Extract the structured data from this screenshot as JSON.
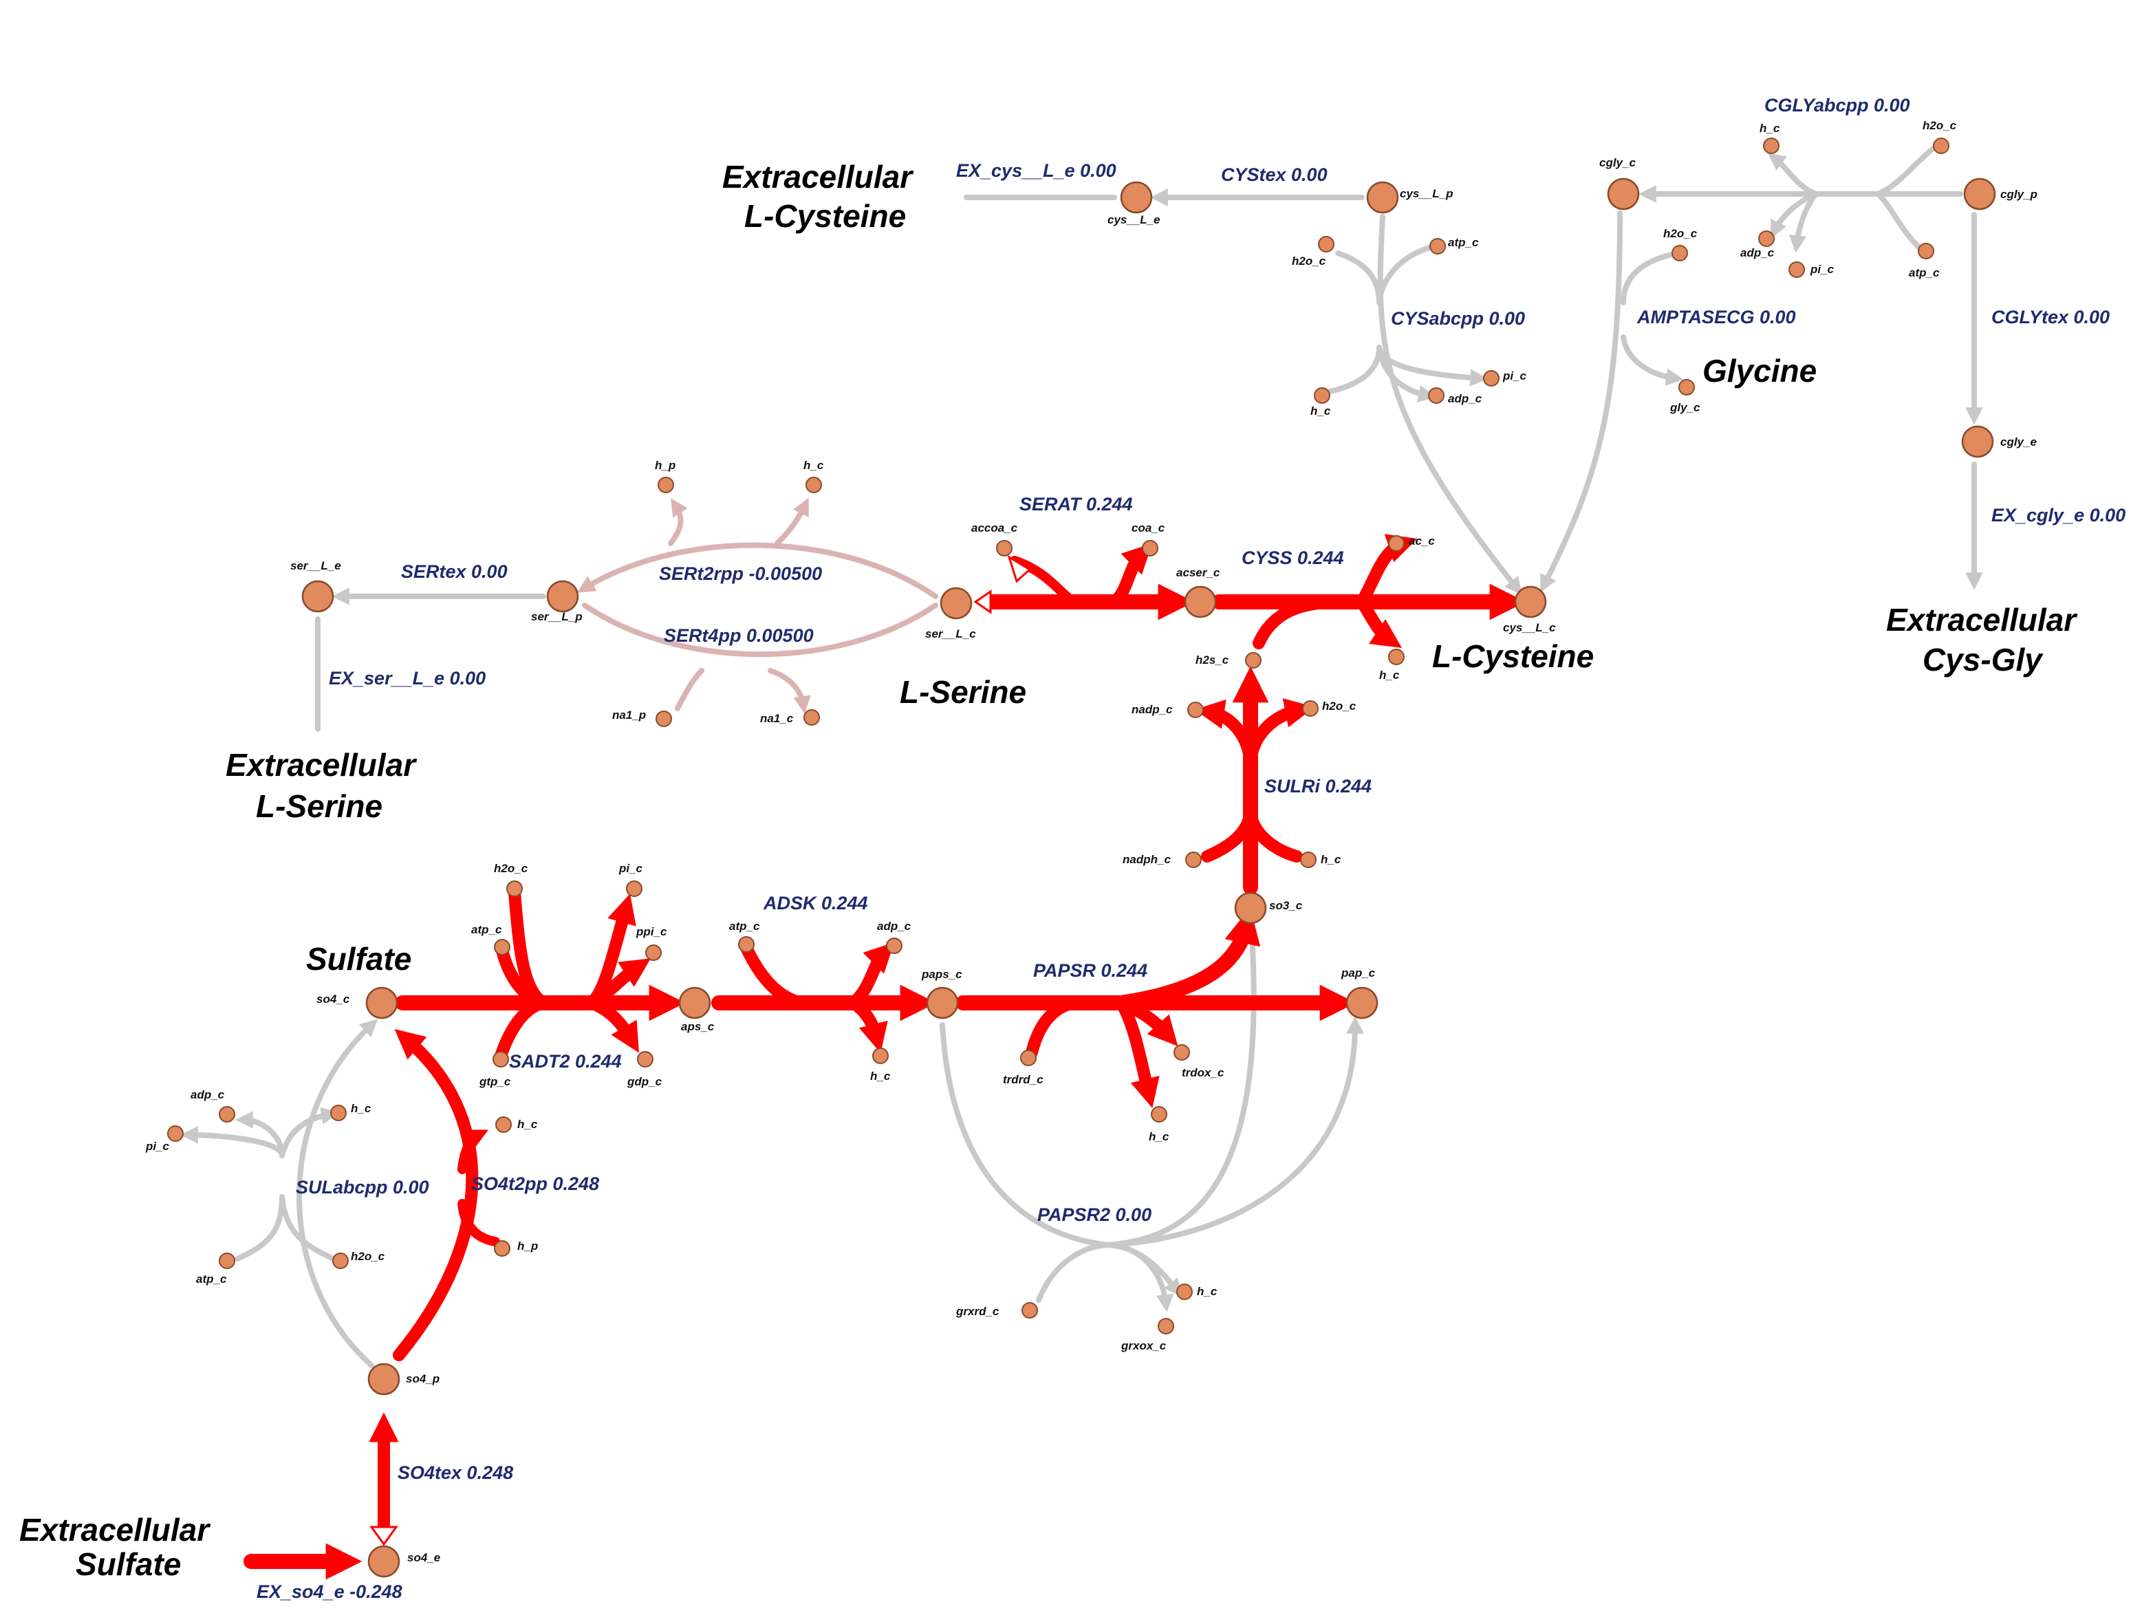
{
  "colors": {
    "active": "#ff0000",
    "inactive": "#c8c8c8",
    "faded": "#dbb3b3",
    "node_fill": "#e08a5e",
    "node_stroke": "#8a4a2a",
    "reaction_label": "#1f2a6e"
  },
  "reactions": {
    "ex_so4_e": "EX_so4_e -0.248",
    "so4tex": "SO4tex 0.248",
    "so4t2pp": "SO4t2pp 0.248",
    "sulabcpp": "SULabcpp 0.00",
    "sadt2": "SADT2 0.244",
    "adsk": "ADSK 0.244",
    "papsr": "PAPSR 0.244",
    "papsr2": "PAPSR2 0.00",
    "sulri": "SULRi 0.244",
    "cyss": "CYSS 0.244",
    "serat": "SERAT 0.244",
    "sertex": "SERtex 0.00",
    "ex_ser_l_e": "EX_ser__L_e 0.00",
    "sert2rpp": "SERt2rpp -0.00500",
    "sert4pp": "SERt4pp 0.00500",
    "ex_cys_l_e": "EX_cys__L_e 0.00",
    "cystex": "CYStex 0.00",
    "cysabcpp": "CYSabcpp 0.00",
    "amptasecg": "AMPTASECG 0.00",
    "cglyabcpp": "CGLYabcpp 0.00",
    "cglytex": "CGLYtex 0.00",
    "ex_cgly_e": "EX_cgly_e 0.00"
  },
  "metabolites": {
    "so4_e": "so4_e",
    "so4_p": "so4_p",
    "so4_c": "so4_c",
    "h_p": "h_p",
    "h_c_so4t2pp": "h_c",
    "adp_c_sul": "adp_c",
    "pi_c_sul": "pi_c",
    "h_c_sul": "h_c",
    "atp_c_sul": "atp_c",
    "h2o_c_sul": "h2o_c",
    "h2o_c_sadt2": "h2o_c",
    "pi_c_sadt2": "pi_c",
    "atp_c_sadt2": "atp_c",
    "ppi_c": "ppi_c",
    "gtp_c": "gtp_c",
    "gdp_c": "gdp_c",
    "aps_c": "aps_c",
    "atp_c_adsk": "atp_c",
    "adp_c_adsk": "adp_c",
    "h_c_adsk": "h_c",
    "paps_c": "paps_c",
    "trdrd_c": "trdrd_c",
    "trdox_c": "trdox_c",
    "h_c_papsr": "h_c",
    "pap_c": "pap_c",
    "grxrd_c": "grxrd_c",
    "grxox_c": "grxox_c",
    "h_c_papsr2": "h_c",
    "so3_c": "so3_c",
    "nadph_c": "nadph_c",
    "h_c_sulri": "h_c",
    "nadp_c": "nadp_c",
    "h2o_c_sulri": "h2o_c",
    "h2s_c": "h2s_c",
    "acser_c": "acser_c",
    "ac_c": "ac_c",
    "h_c_cyss": "h_c",
    "cys_l_c": "cys__L_c",
    "ser_l_c": "ser__L_c",
    "accoa_c": "accoa_c",
    "coa_c": "coa_c",
    "ser_l_p": "ser__L_p",
    "ser_l_e": "ser__L_e",
    "h_p_ser": "h_p",
    "h_c_ser": "h_c",
    "na1_p": "na1_p",
    "na1_c": "na1_c",
    "cys_l_e": "cys__L_e",
    "cys_l_p": "cys__L_p",
    "h2o_c_cys": "h2o_c",
    "atp_c_cys": "atp_c",
    "h_c_cys": "h_c",
    "adp_c_cys": "adp_c",
    "pi_c_cys": "pi_c",
    "cgly_c": "cgly_c",
    "h2o_c_amp": "h2o_c",
    "gly_c": "gly_c",
    "cgly_p": "cgly_p",
    "h_c_cgly": "h_c",
    "h2o_c_cgly": "h2o_c",
    "adp_c_cgly": "adp_c",
    "pi_c_cgly": "pi_c",
    "atp_c_cgly": "atp_c",
    "cgly_e": "cgly_e"
  },
  "titles": {
    "extracellular_sulfate_1": "Extracellular",
    "extracellular_sulfate_2": "Sulfate",
    "sulfate": "Sulfate",
    "extracellular_lserine_1": "Extracellular",
    "extracellular_lserine_2": "L-Serine",
    "lserine": "L-Serine",
    "extracellular_lcysteine_1": "Extracellular",
    "extracellular_lcysteine_2": "L-Cysteine",
    "lcysteine": "L-Cysteine",
    "glycine": "Glycine",
    "extracellular_cysgly_1": "Extracellular",
    "extracellular_cysgly_2": "Cys-Gly"
  }
}
